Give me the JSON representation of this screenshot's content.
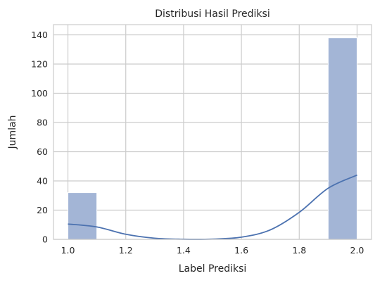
{
  "chart_data": {
    "type": "bar",
    "title": "Distribusi Hasil Prediksi",
    "xlabel": "Label Prediksi",
    "ylabel": "Jumlah",
    "xlim": [
      0.95,
      2.05
    ],
    "ylim": [
      0,
      147
    ],
    "x_ticks": [
      "1.0",
      "1.2",
      "1.4",
      "1.6",
      "1.8",
      "2.0"
    ],
    "y_ticks": [
      "0",
      "20",
      "40",
      "60",
      "80",
      "100",
      "120",
      "140"
    ],
    "grid": true,
    "bins": [
      {
        "x0": 1.0,
        "x1": 1.1,
        "value": 32
      },
      {
        "x0": 1.1,
        "x1": 1.2,
        "value": 0
      },
      {
        "x0": 1.2,
        "x1": 1.3,
        "value": 0
      },
      {
        "x0": 1.3,
        "x1": 1.4,
        "value": 0
      },
      {
        "x0": 1.4,
        "x1": 1.5,
        "value": 0
      },
      {
        "x0": 1.5,
        "x1": 1.6,
        "value": 0
      },
      {
        "x0": 1.6,
        "x1": 1.7,
        "value": 0
      },
      {
        "x0": 1.7,
        "x1": 1.8,
        "value": 0
      },
      {
        "x0": 1.8,
        "x1": 1.9,
        "value": 0
      },
      {
        "x0": 1.9,
        "x1": 2.0,
        "value": 138
      }
    ],
    "kde": {
      "x": [
        1.0,
        1.1,
        1.2,
        1.3,
        1.4,
        1.5,
        1.6,
        1.7,
        1.8,
        1.9,
        2.0
      ],
      "y": [
        10.5,
        8.5,
        3.5,
        0.8,
        0.1,
        0.2,
        1.5,
        6.5,
        18.5,
        35.0,
        44.0
      ]
    },
    "colors": {
      "bar_fill": "#a3b5d6",
      "bar_edge": "#ffffff",
      "kde_line": "#4c72b0",
      "grid": "#cccccc",
      "axes_edge": "#cccccc",
      "text": "#262626"
    }
  }
}
